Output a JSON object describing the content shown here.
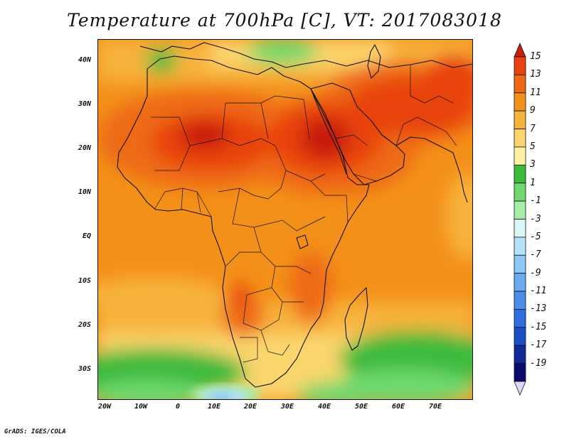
{
  "title": "Temperature at 700hPa [C], VT: 2017083018",
  "credit": "GrADS: IGES/COLA",
  "map": {
    "lon_range": [
      -23,
      80
    ],
    "lat_range": [
      -37,
      45
    ],
    "lat_labels": [
      "40N",
      "30N",
      "20N",
      "10N",
      "EQ",
      "10S",
      "20S",
      "30S"
    ],
    "lon_labels": [
      "20W",
      "10W",
      "0",
      "10E",
      "20E",
      "30E",
      "40E",
      "50E",
      "60E",
      "70E"
    ]
  },
  "colorbar": {
    "levels": [
      "15",
      "13",
      "11",
      "9",
      "7",
      "5",
      "3",
      "1",
      "-1",
      "-3",
      "-5",
      "-7",
      "-9",
      "-11",
      "-13",
      "-15",
      "-17",
      "-19"
    ],
    "colors": [
      "#c81e0f",
      "#e8420e",
      "#ee6a12",
      "#f39019",
      "#f7b33c",
      "#fbd56d",
      "#fff2a5",
      "#3cba3c",
      "#6ed96e",
      "#a6eda6",
      "#d9f8f4",
      "#b6e3fa",
      "#8ec8f6",
      "#6aaaf0",
      "#4c8cea",
      "#2f6ee0",
      "#1a4fc8",
      "#102a98",
      "#0a0a6a",
      "#e0d8f7"
    ]
  }
}
